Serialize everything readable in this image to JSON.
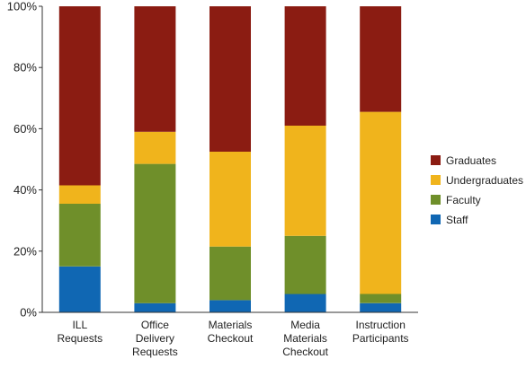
{
  "chart_data": {
    "type": "bar",
    "stacked": true,
    "categories": [
      "ILL Requests",
      "Office Delivery Requests",
      "Materials Checkout",
      "Media Materials Checkout",
      "Instruction Participants"
    ],
    "category_lines": [
      [
        "ILL",
        "Requests"
      ],
      [
        "Office",
        "Delivery",
        "Requests"
      ],
      [
        "Materials",
        "Checkout"
      ],
      [
        "Media",
        "Materials",
        "Checkout"
      ],
      [
        "Instruction",
        "Participants"
      ]
    ],
    "series": [
      {
        "name": "Staff",
        "color": "#1067b3",
        "values": [
          15,
          3,
          4,
          6,
          3
        ]
      },
      {
        "name": "Faculty",
        "color": "#6f8f2a",
        "values": [
          20.5,
          45.5,
          17.5,
          19,
          3
        ]
      },
      {
        "name": "Undergraduates",
        "color": "#f0b41c",
        "values": [
          6,
          10.5,
          31,
          36,
          59.5
        ]
      },
      {
        "name": "Graduates",
        "color": "#8b1c12",
        "values": [
          58.5,
          41,
          47.5,
          39,
          34.5
        ]
      }
    ],
    "legend_order": [
      "Graduates",
      "Undergraduates",
      "Faculty",
      "Staff"
    ],
    "legend_position": "right",
    "ylim": [
      0,
      100
    ],
    "yticks": [
      0,
      20,
      40,
      60,
      80,
      100
    ],
    "ytick_labels": [
      "0%",
      "20%",
      "40%",
      "60%",
      "80%",
      "100%"
    ],
    "title": "",
    "xlabel": "",
    "ylabel": "",
    "grid": false
  }
}
